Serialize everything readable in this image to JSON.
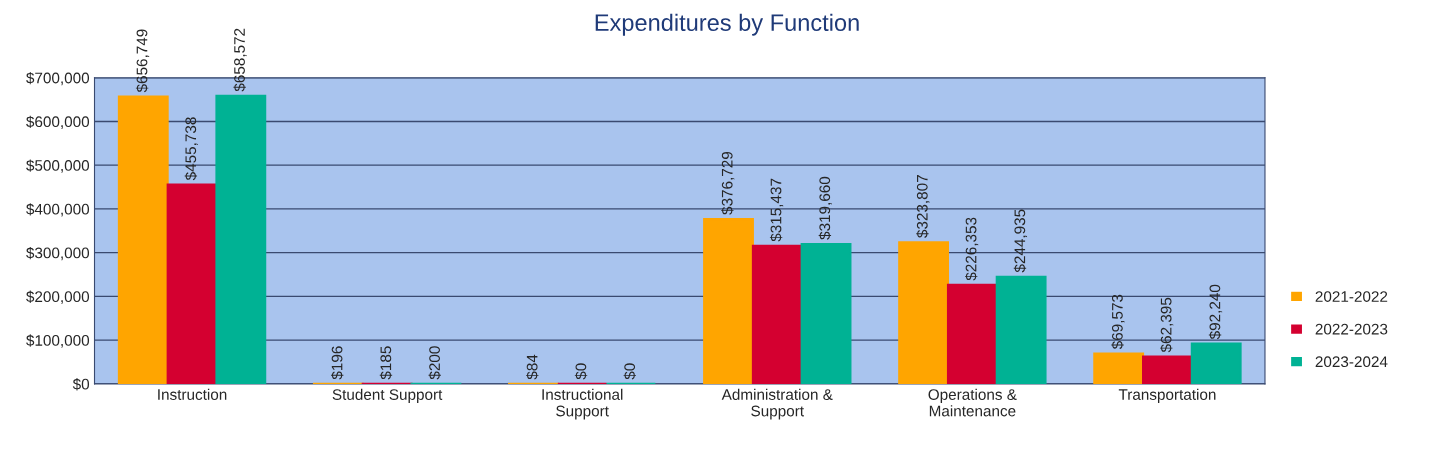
{
  "chart_data": {
    "type": "bar",
    "title": "Expenditures by Function",
    "categories": [
      "Instruction",
      "Student Support",
      "Instructional\nSupport",
      "Administration &\nSupport",
      "Operations &\nMaintenance",
      "Transportation"
    ],
    "series": [
      {
        "name": "2021-2022",
        "color": "#ffa500",
        "values": [
          656749,
          196,
          84,
          376729,
          323807,
          69573
        ],
        "value_labels": [
          "$656,749",
          "$196",
          "$84",
          "$376,729",
          "$323,807",
          "$69,573"
        ]
      },
      {
        "name": "2022-2023",
        "color": "#d40030",
        "values": [
          455738,
          185,
          0,
          315437,
          226353,
          62395
        ],
        "value_labels": [
          "$455,738",
          "$185",
          "$0",
          "$315,437",
          "$226,353",
          "$62,395"
        ]
      },
      {
        "name": "2023-2024",
        "color": "#00b294",
        "values": [
          658572,
          200,
          0,
          319660,
          244935,
          92240
        ],
        "value_labels": [
          "$658,572",
          "$200",
          "$0",
          "$319,660",
          "$244,935",
          "$92,240"
        ]
      }
    ],
    "ylim": [
      0,
      700000
    ],
    "yticks": [
      {
        "value": 0,
        "label": "$0"
      },
      {
        "value": 100000,
        "label": "$100,000"
      },
      {
        "value": 200000,
        "label": "$200,000"
      },
      {
        "value": 300000,
        "label": "$300,000"
      },
      {
        "value": 400000,
        "label": "$400,000"
      },
      {
        "value": 500000,
        "label": "$500,000"
      },
      {
        "value": 600000,
        "label": "$600,000"
      },
      {
        "value": 700000,
        "label": "$700,000"
      }
    ],
    "grid": "y",
    "legend": "bottom right"
  }
}
